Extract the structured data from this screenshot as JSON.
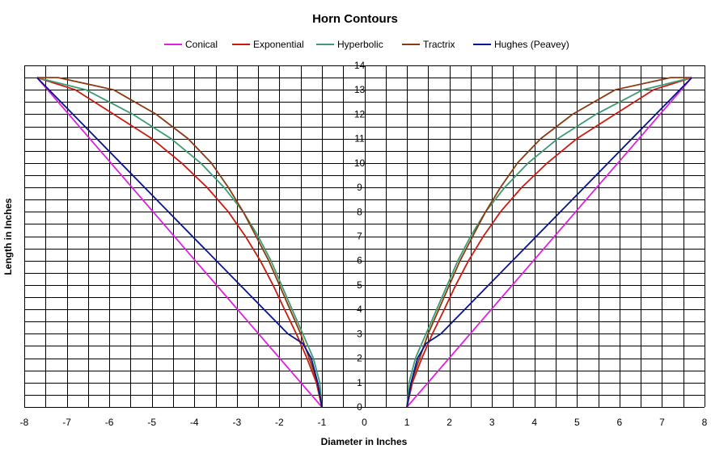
{
  "chart_data": {
    "type": "line",
    "title": "Horn Contours",
    "xlabel": "Diameter in Inches",
    "ylabel": "Length in Inches",
    "xlim": [
      -8,
      8
    ],
    "ylim": [
      0,
      14
    ],
    "x_ticks": [
      -8,
      -7,
      -6,
      -5,
      -4,
      -3,
      -2,
      -1,
      0,
      1,
      2,
      3,
      4,
      5,
      6,
      7,
      8
    ],
    "y_ticks": [
      0,
      1,
      2,
      3,
      4,
      5,
      6,
      7,
      8,
      9,
      10,
      11,
      12,
      13,
      14
    ],
    "grid": {
      "x_step": 0.5,
      "y_step": 0.5,
      "visible": true
    },
    "legend_position": "top",
    "series": [
      {
        "name": "Conical",
        "color": "#E020E0",
        "points": [
          [
            1.0,
            0
          ],
          [
            7.7,
            13.5
          ]
        ],
        "mirrored": true
      },
      {
        "name": "Exponential",
        "color": "#CC1A10",
        "points": [
          [
            1.0,
            0
          ],
          [
            1.13,
            1
          ],
          [
            1.35,
            2
          ],
          [
            1.6,
            3
          ],
          [
            1.88,
            4
          ],
          [
            2.15,
            5
          ],
          [
            2.45,
            6
          ],
          [
            2.8,
            7
          ],
          [
            3.2,
            8
          ],
          [
            3.7,
            9
          ],
          [
            4.3,
            10
          ],
          [
            5.0,
            11
          ],
          [
            5.9,
            12
          ],
          [
            6.8,
            13
          ],
          [
            7.7,
            13.5
          ]
        ],
        "mirrored": true
      },
      {
        "name": "Hyperbolic",
        "color": "#3C9A74",
        "points": [
          [
            1.0,
            0
          ],
          [
            1.05,
            1
          ],
          [
            1.2,
            2
          ],
          [
            1.45,
            3
          ],
          [
            1.7,
            4
          ],
          [
            1.95,
            5
          ],
          [
            2.2,
            6
          ],
          [
            2.5,
            7
          ],
          [
            2.85,
            8
          ],
          [
            3.3,
            9
          ],
          [
            3.85,
            10
          ],
          [
            4.55,
            11
          ],
          [
            5.45,
            12
          ],
          [
            6.55,
            13
          ],
          [
            7.7,
            13.5
          ]
        ],
        "mirrored": true
      },
      {
        "name": "Tractrix",
        "color": "#8B3A10",
        "points": [
          [
            1.0,
            0
          ],
          [
            1.1,
            1
          ],
          [
            1.3,
            2
          ],
          [
            1.5,
            3
          ],
          [
            1.75,
            4
          ],
          [
            2.0,
            5
          ],
          [
            2.25,
            6
          ],
          [
            2.55,
            7
          ],
          [
            2.85,
            8
          ],
          [
            3.2,
            9
          ],
          [
            3.6,
            10
          ],
          [
            4.15,
            11
          ],
          [
            4.9,
            12
          ],
          [
            5.9,
            13
          ],
          [
            7.2,
            13.5
          ],
          [
            7.7,
            13.5
          ]
        ],
        "mirrored": true
      },
      {
        "name": "Hughes (Peavey)",
        "color": "#0A148C",
        "points": [
          [
            1.0,
            0
          ],
          [
            1.1,
            1
          ],
          [
            1.25,
            2
          ],
          [
            1.45,
            2.6
          ],
          [
            1.8,
            3
          ],
          [
            7.7,
            13.5
          ]
        ],
        "mirrored": true
      }
    ]
  }
}
